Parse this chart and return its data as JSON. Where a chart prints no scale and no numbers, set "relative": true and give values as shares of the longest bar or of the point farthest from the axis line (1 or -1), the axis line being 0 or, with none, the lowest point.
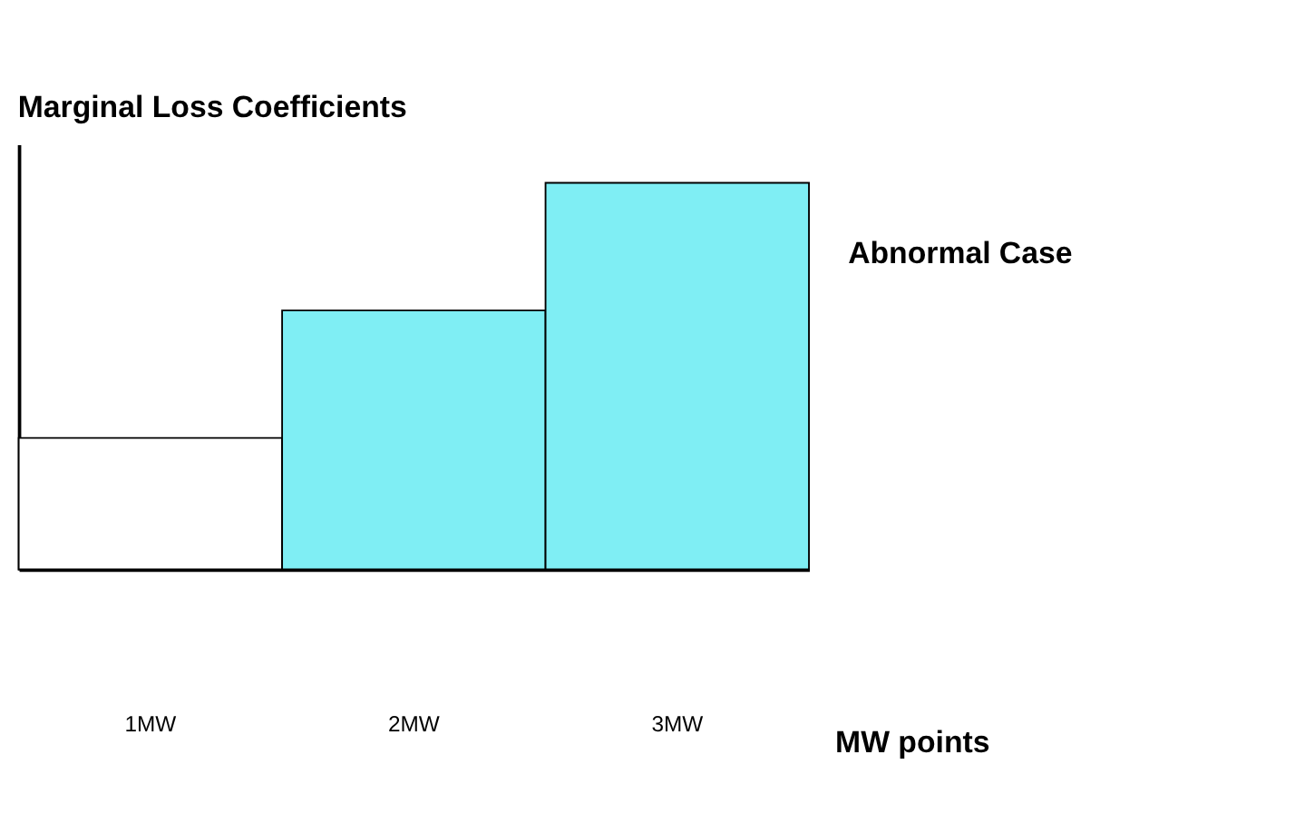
{
  "chart_data": {
    "type": "bar",
    "title": "Marginal Loss Coefficients",
    "xlabel": "MW points",
    "categories": [
      "1MW",
      "2MW",
      "3MW"
    ],
    "values": [
      0.34,
      0.67,
      1
    ],
    "colors": [
      "#ffffff",
      "#7feef4",
      "#7feef4"
    ],
    "relative": true,
    "annotations": [
      "Abnormal Case"
    ]
  }
}
